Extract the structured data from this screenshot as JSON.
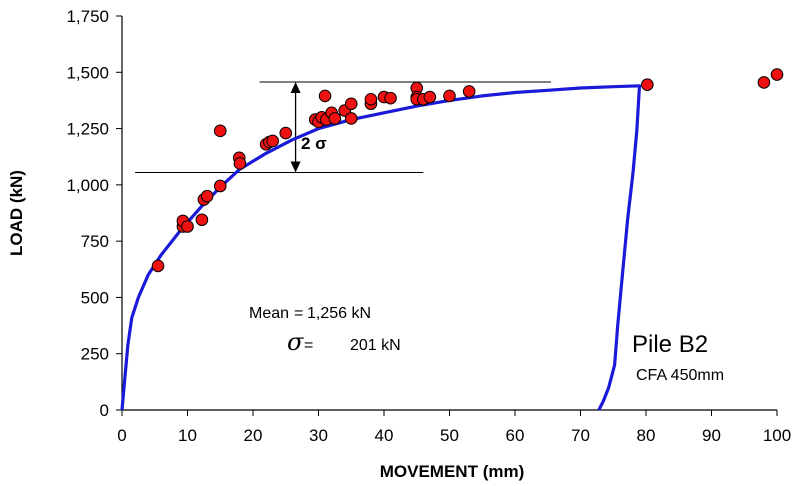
{
  "chart_data": {
    "type": "scatter",
    "xlabel": "MOVEMENT  (mm)",
    "ylabel": "LOAD  (kN)",
    "xlim": [
      0,
      100
    ],
    "ylim": [
      0,
      1750
    ],
    "x_ticks": [
      "0",
      "10",
      "20",
      "30",
      "40",
      "50",
      "60",
      "70",
      "80",
      "90",
      "100"
    ],
    "y_ticks": [
      "0",
      "250",
      "500",
      "750",
      "1,000",
      "1,250",
      "1,500",
      "1,750"
    ],
    "grid": false,
    "series": [
      {
        "type": "scatter",
        "color": "#ee1111",
        "points": [
          [
            5.5,
            640
          ],
          [
            9.3,
            815
          ],
          [
            9.3,
            840
          ],
          [
            10,
            815
          ],
          [
            12.2,
            845
          ],
          [
            12.5,
            935
          ],
          [
            13,
            950
          ],
          [
            15,
            995
          ],
          [
            15,
            1240
          ],
          [
            17.9,
            1120
          ],
          [
            18,
            1095
          ],
          [
            22,
            1180
          ],
          [
            22.5,
            1190
          ],
          [
            23,
            1195
          ],
          [
            25,
            1230
          ],
          [
            29.5,
            1290
          ],
          [
            30,
            1280
          ],
          [
            30.5,
            1300
          ],
          [
            31,
            1395
          ],
          [
            31.2,
            1290
          ],
          [
            32,
            1320
          ],
          [
            32.5,
            1295
          ],
          [
            34,
            1330
          ],
          [
            35,
            1295
          ],
          [
            35,
            1360
          ],
          [
            38,
            1360
          ],
          [
            38,
            1380
          ],
          [
            40,
            1390
          ],
          [
            41,
            1385
          ],
          [
            45,
            1430
          ],
          [
            45,
            1390
          ],
          [
            45,
            1380
          ],
          [
            46,
            1380
          ],
          [
            47,
            1390
          ],
          [
            50,
            1395
          ],
          [
            53,
            1415
          ],
          [
            80.2,
            1445
          ],
          [
            98,
            1455
          ],
          [
            100,
            1490
          ]
        ]
      },
      {
        "type": "line",
        "color": "#1a1ad8",
        "points": [
          [
            0,
            0
          ],
          [
            0.4,
            130
          ],
          [
            0.9,
            290
          ],
          [
            1.5,
            410
          ],
          [
            2.5,
            500
          ],
          [
            4,
            600
          ],
          [
            6,
            690
          ],
          [
            9,
            800
          ],
          [
            12,
            900
          ],
          [
            15,
            990
          ],
          [
            18,
            1070
          ],
          [
            22,
            1140
          ],
          [
            26,
            1200
          ],
          [
            30,
            1250
          ],
          [
            35,
            1290
          ],
          [
            40,
            1320
          ],
          [
            45,
            1350
          ],
          [
            50,
            1375
          ],
          [
            55,
            1395
          ],
          [
            60,
            1410
          ],
          [
            65,
            1420
          ],
          [
            70,
            1430
          ],
          [
            75,
            1436
          ],
          [
            79,
            1440
          ],
          [
            79,
            1440
          ],
          [
            78.6,
            1240
          ],
          [
            78,
            1050
          ],
          [
            77.2,
            850
          ],
          [
            76.4,
            600
          ],
          [
            75.7,
            380
          ],
          [
            75.2,
            200
          ],
          [
            74.3,
            100
          ],
          [
            73.5,
            40
          ],
          [
            72.8,
            0
          ]
        ]
      }
    ],
    "sigma_band": {
      "mean": 1256,
      "sigma": 201,
      "upper": 1457,
      "lower": 1055
    },
    "annotations": {
      "two_sigma": "2 σ",
      "mean_label": "Mean",
      "mean_equals": "=",
      "mean_value": "1,256 kN",
      "sigma_symbol": "σ",
      "sigma_equals": "=",
      "sigma_value": "201  kN",
      "pile_name": "Pile B2",
      "pile_type": "CFA 450mm"
    }
  }
}
